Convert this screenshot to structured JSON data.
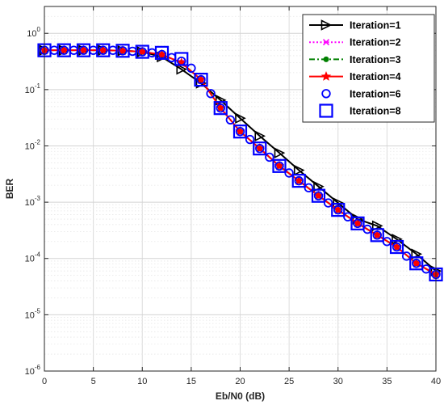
{
  "chart_data": {
    "type": "line",
    "xlabel": "Eb/N0 (dB)",
    "ylabel": "BER",
    "xlim": [
      0,
      40
    ],
    "ylim": [
      1e-06,
      3
    ],
    "yscale": "log",
    "grid": true,
    "legend_position": "top-right",
    "x_ticks": [
      0,
      5,
      10,
      15,
      20,
      25,
      30,
      35,
      40
    ],
    "y_ticks": [
      {
        "value": 1,
        "base": "10",
        "exp": "0"
      },
      {
        "value": 0.1,
        "base": "10",
        "exp": "-1"
      },
      {
        "value": 0.01,
        "base": "10",
        "exp": "-2"
      },
      {
        "value": 0.001,
        "base": "10",
        "exp": "-3"
      },
      {
        "value": 0.0001,
        "base": "10",
        "exp": "-4"
      },
      {
        "value": 1e-05,
        "base": "10",
        "exp": "-5"
      },
      {
        "value": 1e-06,
        "base": "10",
        "exp": "-6"
      }
    ],
    "x": [
      0,
      2,
      4,
      6,
      8,
      10,
      12,
      14,
      16,
      18,
      20,
      22,
      24,
      26,
      28,
      30,
      32,
      34,
      36,
      38,
      40
    ],
    "series": [
      {
        "name": "Iteration=1",
        "color": "#000000",
        "line": "solid",
        "marker": "triangle-right",
        "values": [
          0.5,
          0.5,
          0.5,
          0.5,
          0.49,
          0.47,
          0.38,
          0.23,
          0.13,
          0.065,
          0.031,
          0.015,
          0.0075,
          0.0037,
          0.0019,
          0.00097,
          0.0005,
          0.00038,
          0.00022,
          0.00012,
          6e-05
        ]
      },
      {
        "name": "Iteration=2",
        "color": "#ff00ff",
        "line": "dotted",
        "marker": "x",
        "values": [
          0.5,
          0.5,
          0.5,
          0.5,
          0.49,
          0.47,
          0.42,
          0.3,
          0.15,
          0.047,
          0.018,
          0.009,
          0.0044,
          0.0024,
          0.0013,
          0.00073,
          0.00042,
          0.00026,
          0.00016,
          8.2e-05,
          5.2e-05
        ]
      },
      {
        "name": "Iteration=3",
        "color": "#008000",
        "line": "dashdot",
        "marker": "dot",
        "values": [
          0.5,
          0.5,
          0.5,
          0.5,
          0.49,
          0.47,
          0.42,
          0.3,
          0.15,
          0.047,
          0.018,
          0.009,
          0.0044,
          0.0024,
          0.0013,
          0.00073,
          0.00042,
          0.00026,
          0.00016,
          8.2e-05,
          5.2e-05
        ]
      },
      {
        "name": "Iteration=4",
        "color": "#ff0000",
        "line": "solid",
        "marker": "star",
        "values": [
          0.5,
          0.5,
          0.5,
          0.5,
          0.49,
          0.47,
          0.42,
          0.3,
          0.15,
          0.047,
          0.018,
          0.009,
          0.0044,
          0.0024,
          0.0013,
          0.00073,
          0.00042,
          0.00026,
          0.00016,
          8.2e-05,
          5.2e-05
        ]
      },
      {
        "name": "Iteration=6",
        "color": "#0000ff",
        "line": "none",
        "marker": "circle",
        "x": [
          0,
          1,
          2,
          3,
          4,
          5,
          6,
          7,
          8,
          9,
          10,
          11,
          12,
          13,
          14,
          15,
          16,
          17,
          18,
          19,
          20,
          21,
          22,
          23,
          24,
          25,
          26,
          27,
          28,
          29,
          30,
          31,
          32,
          33,
          34,
          35,
          36,
          37,
          38,
          39,
          40
        ],
        "values": [
          0.5,
          0.5,
          0.5,
          0.5,
          0.5,
          0.5,
          0.5,
          0.5,
          0.49,
          0.48,
          0.47,
          0.45,
          0.42,
          0.37,
          0.32,
          0.24,
          0.15,
          0.085,
          0.047,
          0.029,
          0.018,
          0.013,
          0.009,
          0.0063,
          0.0044,
          0.0033,
          0.0024,
          0.0018,
          0.0013,
          0.00097,
          0.00073,
          0.00055,
          0.00042,
          0.00033,
          0.00026,
          0.0002,
          0.00016,
          0.00011,
          8.2e-05,
          6.5e-05,
          5.2e-05
        ]
      },
      {
        "name": "Iteration=8",
        "color": "#0000ff",
        "line": "none",
        "marker": "square",
        "values": [
          0.5,
          0.5,
          0.5,
          0.5,
          0.49,
          0.47,
          0.45,
          0.35,
          0.15,
          0.047,
          0.018,
          0.009,
          0.0044,
          0.0024,
          0.0013,
          0.00073,
          0.00042,
          0.00026,
          0.00016,
          8.2e-05,
          5.2e-05
        ]
      }
    ]
  }
}
